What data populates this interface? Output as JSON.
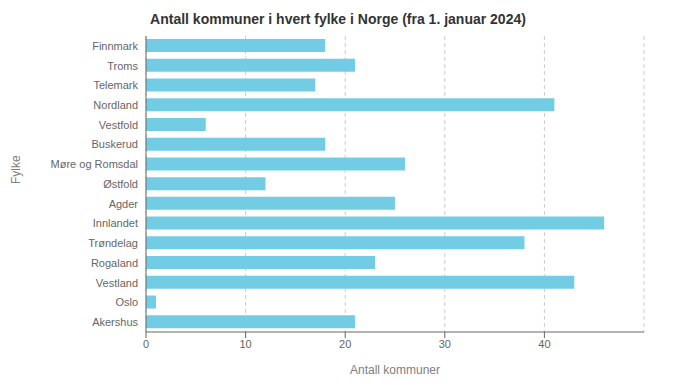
{
  "chart_data": {
    "type": "bar",
    "orientation": "horizontal",
    "title": "Antall kommuner i hvert fylke i Norge (fra 1. januar 2024)",
    "xlabel": "Antall kommuner",
    "ylabel": "Fylke",
    "categories": [
      "Akershus",
      "Oslo",
      "Vestland",
      "Rogaland",
      "Trøndelag",
      "Innlandet",
      "Agder",
      "Østfold",
      "Møre og Romsdal",
      "Buskerud",
      "Vestfold",
      "Nordland",
      "Telemark",
      "Troms",
      "Finnmark"
    ],
    "values": [
      21,
      1,
      43,
      23,
      38,
      46,
      25,
      12,
      26,
      18,
      6,
      41,
      17,
      21,
      18
    ],
    "color": "#72cde4",
    "xlim": [
      0,
      50
    ],
    "xticks": [
      0,
      10,
      20,
      30,
      40
    ],
    "grid": true
  }
}
